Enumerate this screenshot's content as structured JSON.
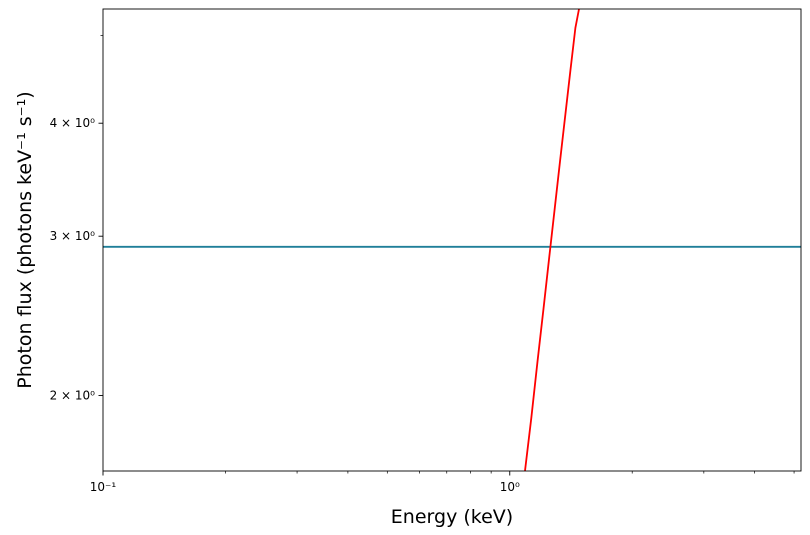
{
  "chart_data": {
    "type": "line",
    "title": "",
    "xlabel": "Energy (keV)",
    "ylabel": "Photon flux (photons keV⁻¹ s⁻¹)",
    "xscale": "log",
    "yscale": "log",
    "xlim": [
      0.1,
      5.2
    ],
    "ylim": [
      1.65,
      5.35
    ],
    "grid": false,
    "legend": "none",
    "x_ticks": [
      {
        "value": 0.1,
        "label": "10⁻¹"
      },
      {
        "value": 1,
        "label": "10⁰"
      }
    ],
    "y_ticks": [
      {
        "value": 2,
        "label": "2 × 10⁰"
      },
      {
        "value": 3,
        "label": "3 × 10⁰"
      },
      {
        "value": 4,
        "label": "4 × 10⁰"
      }
    ],
    "series": [
      {
        "color": "#1f7f99",
        "x": [
          0.1,
          5.2
        ],
        "y": [
          2.92,
          2.92
        ]
      },
      {
        "color": "#ff0000",
        "x": [
          1.09,
          1.13,
          1.17,
          1.21,
          1.25,
          1.29,
          1.33,
          1.37,
          1.41,
          1.45,
          1.48
        ],
        "y": [
          1.65,
          1.89,
          2.18,
          2.49,
          2.84,
          3.22,
          3.64,
          4.09,
          4.58,
          5.1,
          5.35
        ]
      }
    ]
  }
}
